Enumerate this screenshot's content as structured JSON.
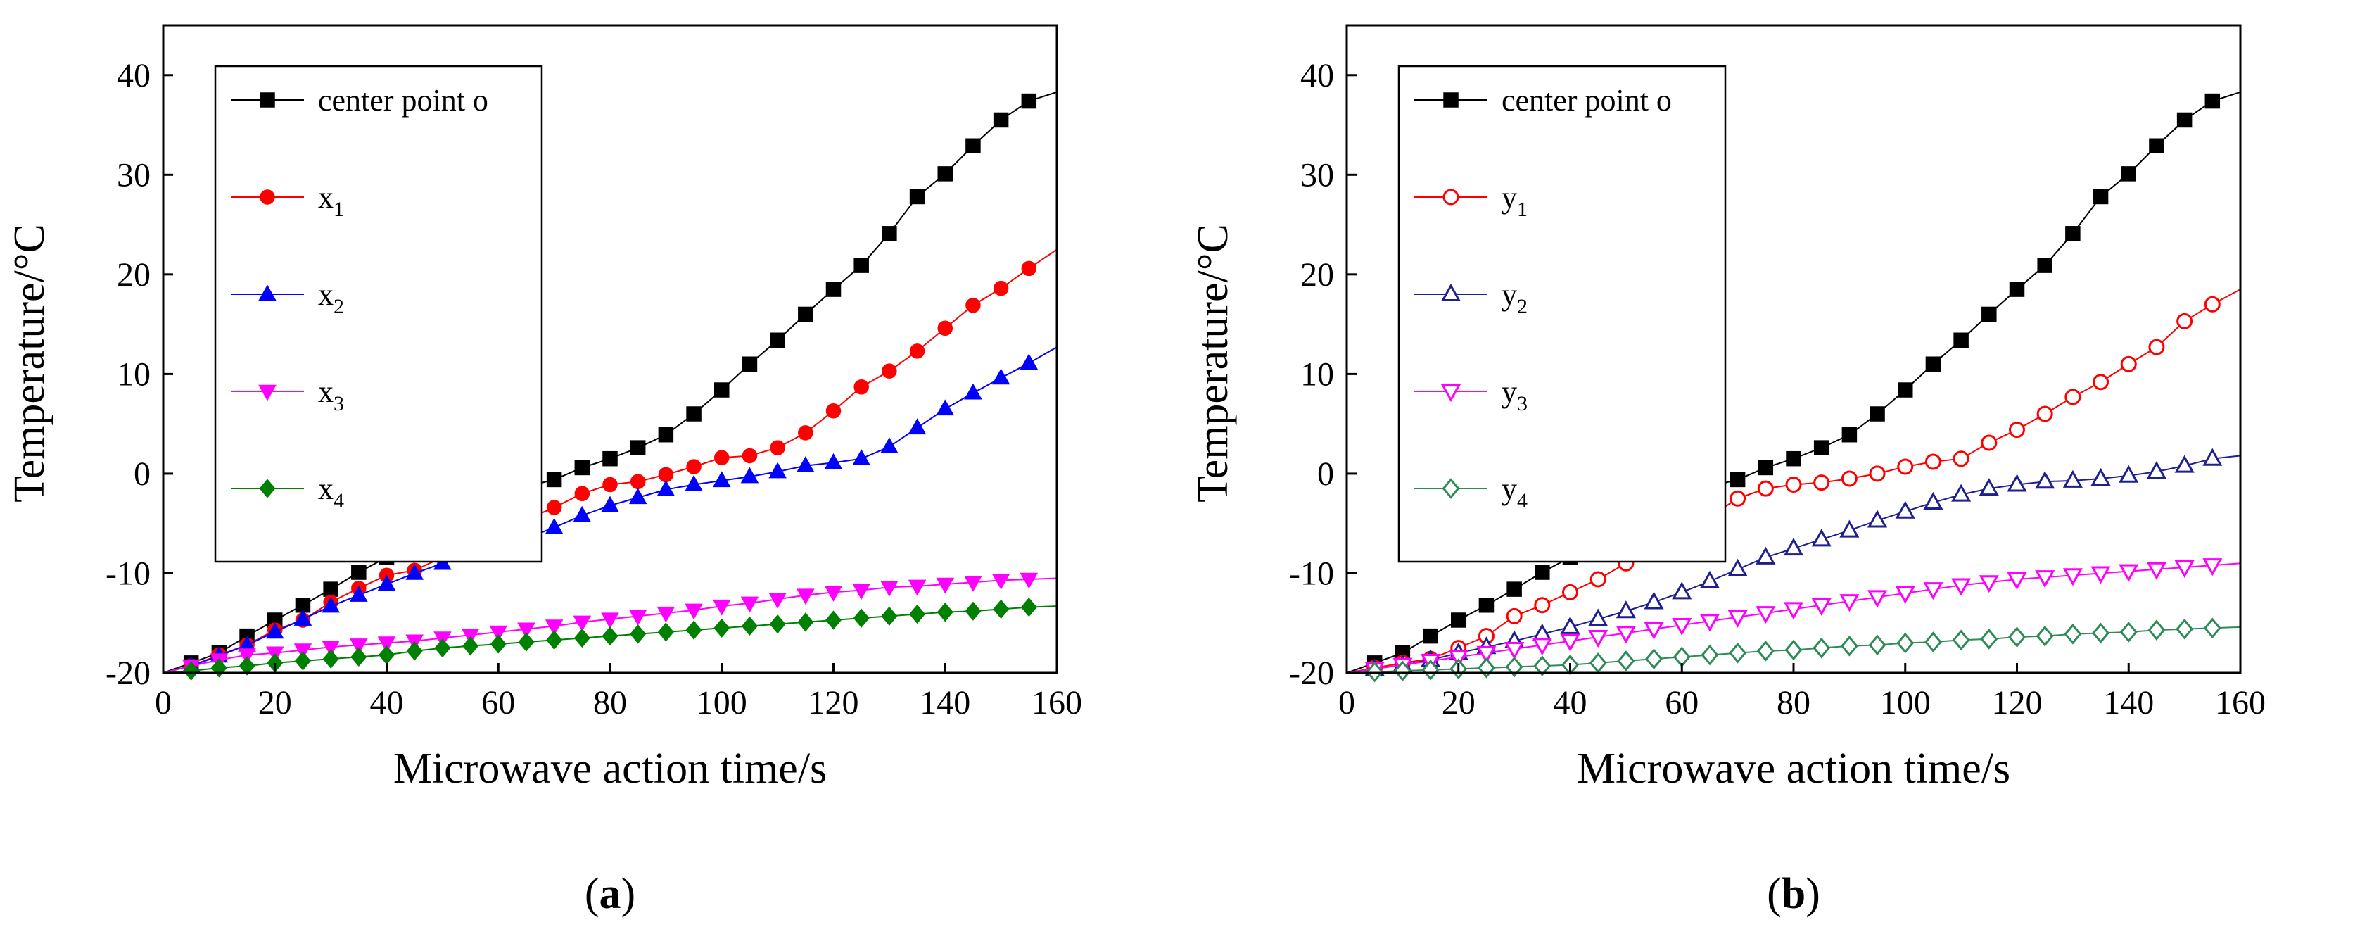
{
  "charts": [
    {
      "panel_label_prefix": "(",
      "panel_label": "a",
      "panel_label_suffix": ")",
      "chart_data": {
        "type": "line",
        "xlabel": "Microwave action time/s",
        "ylabel": "Temperature/°C",
        "xlim": [
          0,
          160
        ],
        "ylim": [
          -20,
          45
        ],
        "xticks": [
          0,
          20,
          40,
          60,
          80,
          100,
          120,
          140,
          160
        ],
        "yticks": [
          -20,
          -10,
          0,
          10,
          20,
          30,
          40
        ],
        "grid": false,
        "legend_position": "top-left",
        "series": [
          {
            "name": "center point o",
            "marker": "square",
            "filled": true,
            "color": "#000000",
            "x": [
              0,
              5,
              10,
              15,
              20,
              25,
              30,
              35,
              40,
              45,
              50,
              55,
              60,
              65,
              70,
              75,
              80,
              85,
              90,
              95,
              100,
              105,
              110,
              115,
              120,
              125,
              130,
              135,
              140,
              145,
              150,
              155,
              160
            ],
            "y": [
              -20,
              -19,
              -18,
              -16.3,
              -14.7,
              -13.2,
              -11.6,
              -9.9,
              -8.4,
              -6.9,
              -5.1,
              -3.7,
              -2.4,
              -1.3,
              -0.6,
              0.6,
              1.5,
              2.6,
              3.9,
              6,
              8.4,
              11,
              13.4,
              16,
              18.5,
              20.9,
              24.1,
              27.8,
              30.1,
              32.9,
              35.5,
              37.4,
              38.3
            ]
          },
          {
            "name": "x",
            "sub": "1",
            "marker": "circle",
            "filled": true,
            "color": "#ff0000",
            "x": [
              0,
              5,
              10,
              15,
              20,
              25,
              30,
              35,
              40,
              45,
              50,
              55,
              60,
              65,
              70,
              75,
              80,
              85,
              90,
              95,
              100,
              105,
              110,
              115,
              120,
              125,
              130,
              135,
              140,
              145,
              150,
              155,
              160
            ],
            "y": [
              -20,
              -19.3,
              -18.2,
              -17.2,
              -15.7,
              -14.7,
              -12.9,
              -11.5,
              -10.2,
              -9.7,
              -8.4,
              -7.3,
              -5.9,
              -4.6,
              -3.4,
              -2,
              -1.1,
              -0.8,
              -0.1,
              0.7,
              1.6,
              1.8,
              2.6,
              4.1,
              6.3,
              8.7,
              10.3,
              12.3,
              14.6,
              16.9,
              18.6,
              20.6,
              22.5
            ]
          },
          {
            "name": "x",
            "sub": "2",
            "marker": "triangle-up",
            "filled": true,
            "color": "#0000ff",
            "x": [
              0,
              5,
              10,
              15,
              20,
              25,
              30,
              35,
              40,
              45,
              50,
              55,
              60,
              65,
              70,
              75,
              80,
              85,
              90,
              95,
              100,
              105,
              110,
              115,
              120,
              125,
              130,
              135,
              140,
              145,
              150,
              155,
              160
            ],
            "y": [
              -20,
              -19.3,
              -18.3,
              -17.2,
              -15.9,
              -14.6,
              -13.3,
              -12.2,
              -11.1,
              -10,
              -9,
              -8.2,
              -7.4,
              -6.5,
              -5.4,
              -4.2,
              -3.2,
              -2.4,
              -1.6,
              -1.1,
              -0.7,
              -0.3,
              0.2,
              0.8,
              1.1,
              1.5,
              2.7,
              4.6,
              6.5,
              8.1,
              9.6,
              11.1,
              12.7
            ]
          },
          {
            "name": "x",
            "sub": "3",
            "marker": "triangle-down",
            "filled": true,
            "color": "#ff00ff",
            "x": [
              0,
              5,
              10,
              15,
              20,
              25,
              30,
              35,
              40,
              45,
              50,
              55,
              60,
              65,
              70,
              75,
              80,
              85,
              90,
              95,
              100,
              105,
              110,
              115,
              120,
              125,
              130,
              135,
              140,
              145,
              150,
              155,
              160
            ],
            "y": [
              -20,
              -19.3,
              -18.7,
              -18.2,
              -18,
              -17.7,
              -17.4,
              -17.2,
              -17,
              -16.8,
              -16.5,
              -16.2,
              -15.9,
              -15.6,
              -15.3,
              -14.9,
              -14.6,
              -14.3,
              -14,
              -13.7,
              -13.3,
              -13,
              -12.6,
              -12.2,
              -11.9,
              -11.7,
              -11.4,
              -11.3,
              -11.1,
              -10.9,
              -10.7,
              -10.6,
              -10.5
            ]
          },
          {
            "name": "x",
            "sub": "4",
            "marker": "diamond",
            "filled": true,
            "color": "#008000",
            "x": [
              0,
              5,
              10,
              15,
              20,
              25,
              30,
              35,
              40,
              45,
              50,
              55,
              60,
              65,
              70,
              75,
              80,
              85,
              90,
              95,
              100,
              105,
              110,
              115,
              120,
              125,
              130,
              135,
              140,
              145,
              150,
              155,
              160
            ],
            "y": [
              -20,
              -19.8,
              -19.5,
              -19.3,
              -19,
              -18.8,
              -18.6,
              -18.4,
              -18.2,
              -17.8,
              -17.5,
              -17.3,
              -17.1,
              -16.9,
              -16.7,
              -16.5,
              -16.3,
              -16.1,
              -15.9,
              -15.7,
              -15.5,
              -15.3,
              -15.1,
              -14.9,
              -14.7,
              -14.5,
              -14.3,
              -14.1,
              -13.9,
              -13.8,
              -13.6,
              -13.4,
              -13.3
            ]
          }
        ]
      }
    },
    {
      "panel_label_prefix": "(",
      "panel_label": "b",
      "panel_label_suffix": ")",
      "chart_data": {
        "type": "line",
        "xlabel": "Microwave action time/s",
        "ylabel": "Temperature/°C",
        "xlim": [
          0,
          160
        ],
        "ylim": [
          -20,
          45
        ],
        "xticks": [
          0,
          20,
          40,
          60,
          80,
          100,
          120,
          140,
          160
        ],
        "yticks": [
          -20,
          -10,
          0,
          10,
          20,
          30,
          40
        ],
        "grid": false,
        "legend_position": "top-left",
        "series": [
          {
            "name": "center point o",
            "marker": "square",
            "filled": true,
            "color": "#000000",
            "x": [
              0,
              5,
              10,
              15,
              20,
              25,
              30,
              35,
              40,
              45,
              50,
              55,
              60,
              65,
              70,
              75,
              80,
              85,
              90,
              95,
              100,
              105,
              110,
              115,
              120,
              125,
              130,
              135,
              140,
              145,
              150,
              155,
              160
            ],
            "y": [
              -20,
              -19,
              -18,
              -16.3,
              -14.7,
              -13.2,
              -11.6,
              -9.9,
              -8.4,
              -6.9,
              -5.1,
              -3.7,
              -2.4,
              -1.3,
              -0.6,
              0.6,
              1.5,
              2.6,
              3.9,
              6,
              8.4,
              11,
              13.4,
              16,
              18.5,
              20.9,
              24.1,
              27.8,
              30.1,
              32.9,
              35.5,
              37.4,
              38.3
            ]
          },
          {
            "name": "y",
            "sub": "1",
            "marker": "circle",
            "filled": false,
            "color": "#ff0000",
            "x": [
              0,
              5,
              10,
              15,
              20,
              25,
              30,
              35,
              40,
              45,
              50,
              55,
              60,
              65,
              70,
              75,
              80,
              85,
              90,
              95,
              100,
              105,
              110,
              115,
              120,
              125,
              130,
              135,
              140,
              145,
              150,
              155,
              160
            ],
            "y": [
              -20,
              -19.5,
              -19,
              -18.6,
              -17.5,
              -16.3,
              -14.3,
              -13.2,
              -11.9,
              -10.6,
              -9,
              -7.6,
              -6.4,
              -4.3,
              -2.5,
              -1.5,
              -1.1,
              -0.9,
              -0.5,
              0,
              0.7,
              1.2,
              1.5,
              3.1,
              4.4,
              6,
              7.7,
              9.2,
              11,
              12.7,
              15.3,
              17,
              18.5
            ]
          },
          {
            "name": "y",
            "sub": "2",
            "marker": "triangle-up",
            "filled": false,
            "color": "#1f1f8f",
            "x": [
              0,
              5,
              10,
              15,
              20,
              25,
              30,
              35,
              40,
              45,
              50,
              55,
              60,
              65,
              70,
              75,
              80,
              85,
              90,
              95,
              100,
              105,
              110,
              115,
              120,
              125,
              130,
              135,
              140,
              145,
              150,
              155,
              160
            ],
            "y": [
              -20,
              -19.6,
              -19.2,
              -18.7,
              -18,
              -17.4,
              -16.8,
              -16.1,
              -15.4,
              -14.6,
              -13.8,
              -12.9,
              -11.9,
              -10.8,
              -9.6,
              -8.4,
              -7.5,
              -6.6,
              -5.7,
              -4.7,
              -3.8,
              -2.9,
              -2.1,
              -1.5,
              -1.1,
              -0.8,
              -0.7,
              -0.5,
              -0.2,
              0.2,
              0.8,
              1.5,
              1.8
            ]
          },
          {
            "name": "y",
            "sub": "3",
            "marker": "triangle-down",
            "filled": false,
            "color": "#ff00ff",
            "x": [
              0,
              5,
              10,
              15,
              20,
              25,
              30,
              35,
              40,
              45,
              50,
              55,
              60,
              65,
              70,
              75,
              80,
              85,
              90,
              95,
              100,
              105,
              110,
              115,
              120,
              125,
              130,
              135,
              140,
              145,
              150,
              155,
              160
            ],
            "y": [
              -20,
              -19.6,
              -19.2,
              -18.8,
              -18.4,
              -18,
              -17.6,
              -17.2,
              -16.8,
              -16.4,
              -16,
              -15.6,
              -15.2,
              -14.8,
              -14.4,
              -14,
              -13.6,
              -13.2,
              -12.8,
              -12.4,
              -12,
              -11.6,
              -11.2,
              -10.9,
              -10.6,
              -10.4,
              -10.2,
              -10,
              -9.8,
              -9.6,
              -9.4,
              -9.2,
              -9
            ]
          },
          {
            "name": "y",
            "sub": "4",
            "marker": "diamond",
            "filled": false,
            "color": "#2e8b57",
            "x": [
              0,
              5,
              10,
              15,
              20,
              25,
              30,
              35,
              40,
              45,
              50,
              55,
              60,
              65,
              70,
              75,
              80,
              85,
              90,
              95,
              100,
              105,
              110,
              115,
              120,
              125,
              130,
              135,
              140,
              145,
              150,
              155,
              160
            ],
            "y": [
              -20,
              -19.9,
              -19.8,
              -19.7,
              -19.6,
              -19.5,
              -19.4,
              -19.3,
              -19.2,
              -19,
              -18.8,
              -18.6,
              -18.4,
              -18.2,
              -18,
              -17.8,
              -17.7,
              -17.5,
              -17.3,
              -17.2,
              -17,
              -16.9,
              -16.7,
              -16.6,
              -16.4,
              -16.3,
              -16.1,
              -16,
              -15.9,
              -15.7,
              -15.6,
              -15.5,
              -15.4
            ]
          }
        ]
      }
    }
  ]
}
